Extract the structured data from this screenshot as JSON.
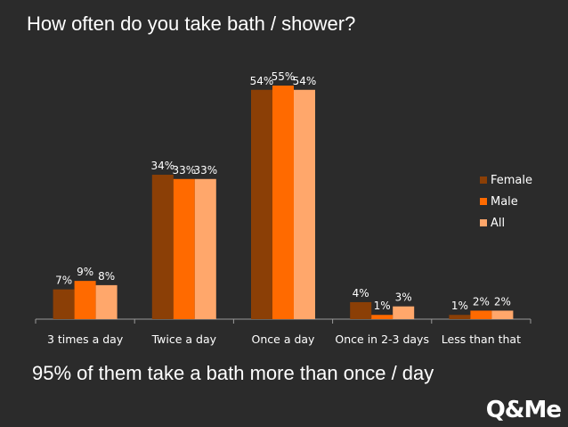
{
  "header": {
    "title": "How often do you take bath / shower?"
  },
  "footer": {
    "caption": "95% of them take a bath more than once / day",
    "logo": "Q&Me"
  },
  "colors": {
    "female": "#8b3f06",
    "male": "#ff6a00",
    "all": "#ffa76b",
    "background": "#2b2b2b"
  },
  "chart_data": {
    "type": "bar",
    "title": "How often do you take bath / shower?",
    "categories": [
      "3 times a day",
      "Twice a day",
      "Once a day",
      "Once in 2-3 days",
      "Less than that"
    ],
    "series": [
      {
        "name": "Female",
        "values": [
          7,
          34,
          54,
          4,
          1
        ],
        "labels": [
          "7%",
          "34%",
          "54%",
          "4%",
          "1%"
        ]
      },
      {
        "name": "Male",
        "values": [
          9,
          33,
          55,
          1,
          2
        ],
        "labels": [
          "9%",
          "33%",
          "55%",
          "1%",
          "2%"
        ]
      },
      {
        "name": "All",
        "values": [
          8,
          33,
          54,
          3,
          2
        ],
        "labels": [
          "8%",
          "33%",
          "54%",
          "3%",
          "2%"
        ]
      }
    ],
    "ylim": [
      0,
      55
    ],
    "grid": false,
    "legend_position": "right"
  }
}
